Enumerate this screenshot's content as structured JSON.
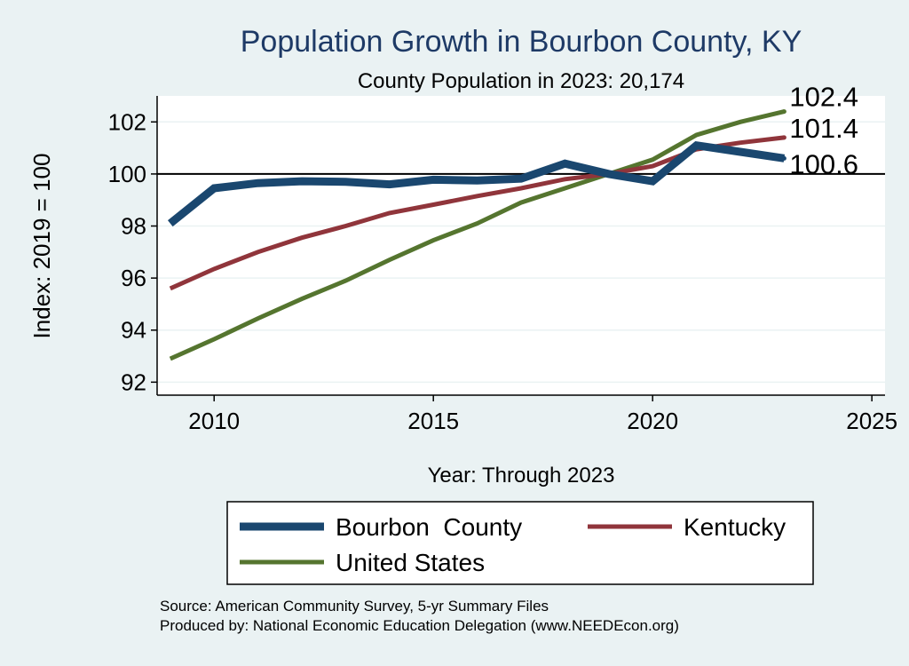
{
  "chart_data": {
    "type": "line",
    "title": "Population Growth in Bourbon County, KY",
    "subtitle": "County Population in 2023: 20,174",
    "xlabel": "Year: Through 2023",
    "ylabel": "Index: 2019 = 100",
    "xlim": [
      2008.7,
      2025.3
    ],
    "ylim": [
      91.5,
      103
    ],
    "x_ticks": [
      2010,
      2015,
      2020,
      2025
    ],
    "y_ticks": [
      92,
      94,
      96,
      98,
      100,
      102
    ],
    "reference_line": 100,
    "grid": "horizontal",
    "legend_position": "bottom",
    "x": [
      2009,
      2010,
      2011,
      2012,
      2013,
      2014,
      2015,
      2016,
      2017,
      2018,
      2019,
      2020,
      2021,
      2022,
      2023
    ],
    "series": [
      {
        "name": "Bourbon  County",
        "color": "#1a476f",
        "values": [
          98.1,
          99.45,
          99.65,
          99.72,
          99.7,
          99.6,
          99.78,
          99.75,
          99.82,
          100.4,
          100.0,
          99.72,
          101.1,
          100.85,
          100.6
        ]
      },
      {
        "name": "Kentucky",
        "color": "#90353b",
        "values": [
          95.6,
          96.35,
          97.0,
          97.55,
          98.0,
          98.5,
          98.82,
          99.15,
          99.45,
          99.8,
          100.0,
          100.3,
          100.95,
          101.2,
          101.4
        ]
      },
      {
        "name": "United States",
        "color": "#55752f",
        "values": [
          92.9,
          93.65,
          94.45,
          95.2,
          95.9,
          96.7,
          97.45,
          98.1,
          98.9,
          99.45,
          100.0,
          100.55,
          101.5,
          102.0,
          102.4
        ]
      }
    ],
    "end_labels": [
      {
        "series": "United States",
        "text": "102.4"
      },
      {
        "series": "Kentucky",
        "text": "101.4"
      },
      {
        "series": "Bourbon  County",
        "text": "100.6"
      }
    ]
  },
  "footer": {
    "source": "Source: American Community Survey, 5-yr Summary Files",
    "produced_by": "Produced by: National Economic Education Delegation (www.NEEDEcon.org)"
  }
}
